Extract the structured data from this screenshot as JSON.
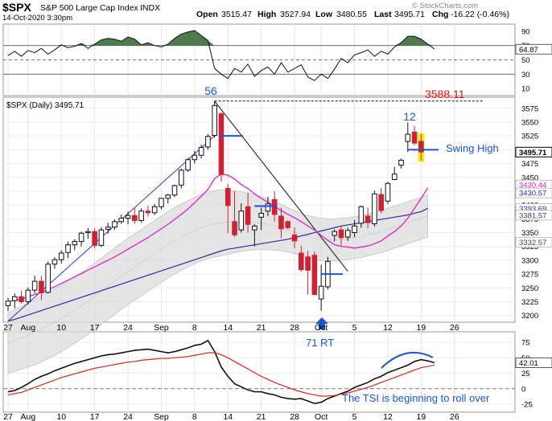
{
  "header": {
    "symbol": "$SPX",
    "name": "S&P 500 Large Cap Index",
    "exchange": "INDX",
    "date": "14-Oct-2020 3:30pm",
    "open_label": "Open",
    "open": "3515.47",
    "high_label": "High",
    "high": "3527.94",
    "low_label": "Low",
    "low": "3480.55",
    "last_label": "Last",
    "last": "3495.71",
    "chg_label": "Chg",
    "chg": "-16.22 (-0.46%)",
    "watermark": "© StockCharts.com"
  },
  "colors": {
    "up": "#111111",
    "down": "#cc2233",
    "accent_blue": "#1a55d6",
    "ma_fast": "#e020c8",
    "ma_slow": "#2a2aa0",
    "band": "#dcdcdc",
    "rsi_fill": "#4e7a4e",
    "annotation_red": "#dd1111",
    "highlight": "#f2ea10"
  },
  "chart_data": [
    {
      "type": "line",
      "panel": "upper indicator",
      "y_ticks": [
        90,
        70,
        50,
        30,
        10
      ],
      "ylim": [
        0,
        100
      ],
      "reference_levels": [
        70,
        50,
        30
      ],
      "last_value_label": "64.87",
      "last_value": 64.87,
      "series": [
        {
          "values": [
            56,
            62,
            55,
            63,
            60,
            66,
            58,
            64,
            71,
            67,
            69,
            73,
            66,
            72,
            78,
            80,
            79,
            76,
            82,
            79,
            71,
            74,
            70,
            68,
            72,
            80,
            86,
            89,
            91,
            84,
            77,
            38,
            30,
            24,
            38,
            33,
            44,
            27,
            35,
            40,
            30,
            46,
            33,
            38,
            43,
            26,
            21,
            30,
            24,
            37,
            52,
            46,
            57,
            60,
            64,
            55,
            62,
            58,
            68,
            74,
            83,
            83,
            79,
            72,
            65
          ]
        }
      ]
    },
    {
      "type": "candlestick",
      "panel": "price",
      "title": "$SPX (Daily) 3495.71",
      "y_ticks": [
        3575,
        3550,
        3525,
        3500,
        3475,
        3450,
        3425,
        3400,
        3375,
        3350,
        3325,
        3300,
        3275,
        3250,
        3225,
        3200
      ],
      "ylim": [
        3188,
        3595
      ],
      "x_ticks": [
        "27",
        "Aug",
        "10",
        "17",
        "24",
        "Sep",
        "8",
        "14",
        "21",
        "28",
        "Oct",
        "5",
        "12",
        "19",
        "26"
      ],
      "right_labels": [
        "3495.71",
        "3430.44",
        "3430.57",
        "3393.69",
        "3381.57",
        "3332.57"
      ],
      "candles": [
        {
          "o": 3218,
          "h": 3232,
          "l": 3208,
          "c": 3226,
          "up": true
        },
        {
          "o": 3227,
          "h": 3240,
          "l": 3213,
          "c": 3234,
          "up": true
        },
        {
          "o": 3234,
          "h": 3245,
          "l": 3222,
          "c": 3225,
          "up": false
        },
        {
          "o": 3225,
          "h": 3251,
          "l": 3220,
          "c": 3246,
          "up": true
        },
        {
          "o": 3246,
          "h": 3272,
          "l": 3240,
          "c": 3262,
          "up": true
        },
        {
          "o": 3262,
          "h": 3272,
          "l": 3228,
          "c": 3241,
          "up": false
        },
        {
          "o": 3242,
          "h": 3298,
          "l": 3240,
          "c": 3293,
          "up": true
        },
        {
          "o": 3293,
          "h": 3306,
          "l": 3285,
          "c": 3301,
          "up": true
        },
        {
          "o": 3301,
          "h": 3318,
          "l": 3294,
          "c": 3313,
          "up": true
        },
        {
          "o": 3314,
          "h": 3334,
          "l": 3304,
          "c": 3328,
          "up": true
        },
        {
          "o": 3328,
          "h": 3338,
          "l": 3318,
          "c": 3334,
          "up": true
        },
        {
          "o": 3334,
          "h": 3352,
          "l": 3325,
          "c": 3349,
          "up": true
        },
        {
          "o": 3350,
          "h": 3358,
          "l": 3339,
          "c": 3352,
          "up": true
        },
        {
          "o": 3352,
          "h": 3358,
          "l": 3322,
          "c": 3327,
          "up": false
        },
        {
          "o": 3327,
          "h": 3360,
          "l": 3324,
          "c": 3355,
          "up": true
        },
        {
          "o": 3356,
          "h": 3368,
          "l": 3348,
          "c": 3360,
          "up": true
        },
        {
          "o": 3360,
          "h": 3374,
          "l": 3355,
          "c": 3370,
          "up": true
        },
        {
          "o": 3370,
          "h": 3383,
          "l": 3366,
          "c": 3376,
          "up": true
        },
        {
          "o": 3376,
          "h": 3388,
          "l": 3365,
          "c": 3381,
          "up": true
        },
        {
          "o": 3381,
          "h": 3396,
          "l": 3366,
          "c": 3372,
          "up": false
        },
        {
          "o": 3372,
          "h": 3394,
          "l": 3368,
          "c": 3389,
          "up": true
        },
        {
          "o": 3389,
          "h": 3399,
          "l": 3379,
          "c": 3386,
          "up": false
        },
        {
          "o": 3386,
          "h": 3402,
          "l": 3382,
          "c": 3397,
          "up": true
        },
        {
          "o": 3397,
          "h": 3413,
          "l": 3392,
          "c": 3412,
          "up": true
        },
        {
          "o": 3412,
          "h": 3420,
          "l": 3403,
          "c": 3418,
          "up": true
        },
        {
          "o": 3418,
          "h": 3437,
          "l": 3414,
          "c": 3435,
          "up": true
        },
        {
          "o": 3436,
          "h": 3466,
          "l": 3430,
          "c": 3463,
          "up": true
        },
        {
          "o": 3463,
          "h": 3485,
          "l": 3460,
          "c": 3482,
          "up": true
        },
        {
          "o": 3482,
          "h": 3498,
          "l": 3475,
          "c": 3490,
          "up": true
        },
        {
          "o": 3490,
          "h": 3509,
          "l": 3484,
          "c": 3504,
          "up": true
        },
        {
          "o": 3505,
          "h": 3528,
          "l": 3500,
          "c": 3524,
          "up": true
        },
        {
          "o": 3526,
          "h": 3588,
          "l": 3522,
          "c": 3580,
          "up": true
        },
        {
          "o": 3565,
          "h": 3568,
          "l": 3442,
          "c": 3455,
          "up": false
        },
        {
          "o": 3430,
          "h": 3438,
          "l": 3349,
          "c": 3399,
          "up": false
        },
        {
          "o": 3370,
          "h": 3425,
          "l": 3342,
          "c": 3346,
          "up": false
        },
        {
          "o": 3355,
          "h": 3403,
          "l": 3350,
          "c": 3389,
          "up": true
        },
        {
          "o": 3365,
          "h": 3422,
          "l": 3350,
          "c": 3397,
          "up": false
        },
        {
          "o": 3362,
          "h": 3365,
          "l": 3325,
          "c": 3355,
          "up": true
        },
        {
          "o": 3378,
          "h": 3395,
          "l": 3355,
          "c": 3385,
          "up": true
        },
        {
          "o": 3389,
          "h": 3415,
          "l": 3380,
          "c": 3402,
          "up": true
        },
        {
          "o": 3410,
          "h": 3425,
          "l": 3370,
          "c": 3383,
          "up": false
        },
        {
          "o": 3380,
          "h": 3395,
          "l": 3340,
          "c": 3357,
          "up": false
        },
        {
          "o": 3370,
          "h": 3372,
          "l": 3356,
          "c": 3359,
          "up": false
        },
        {
          "o": 3346,
          "h": 3360,
          "l": 3322,
          "c": 3335,
          "up": false
        },
        {
          "o": 3313,
          "h": 3326,
          "l": 3279,
          "c": 3283,
          "up": false
        },
        {
          "o": 3306,
          "h": 3317,
          "l": 3238,
          "c": 3282,
          "up": false
        },
        {
          "o": 3309,
          "h": 3316,
          "l": 3237,
          "c": 3238,
          "up": false
        },
        {
          "o": 3230,
          "h": 3292,
          "l": 3209,
          "c": 3253,
          "up": true
        },
        {
          "o": 3252,
          "h": 3306,
          "l": 3247,
          "c": 3298,
          "up": true
        },
        {
          "o": 3345,
          "h": 3356,
          "l": 3334,
          "c": 3352,
          "up": true
        },
        {
          "o": 3355,
          "h": 3363,
          "l": 3326,
          "c": 3341,
          "up": false
        },
        {
          "o": 3342,
          "h": 3359,
          "l": 3335,
          "c": 3354,
          "up": true
        },
        {
          "o": 3350,
          "h": 3373,
          "l": 3342,
          "c": 3362,
          "up": true
        },
        {
          "o": 3367,
          "h": 3399,
          "l": 3359,
          "c": 3397,
          "up": true
        },
        {
          "o": 3380,
          "h": 3395,
          "l": 3358,
          "c": 3368,
          "up": false
        },
        {
          "o": 3366,
          "h": 3426,
          "l": 3361,
          "c": 3420,
          "up": true
        },
        {
          "o": 3419,
          "h": 3431,
          "l": 3385,
          "c": 3390,
          "up": false
        },
        {
          "o": 3407,
          "h": 3442,
          "l": 3402,
          "c": 3439,
          "up": true
        },
        {
          "o": 3446,
          "h": 3469,
          "l": 3445,
          "c": 3456,
          "up": true
        },
        {
          "o": 3472,
          "h": 3484,
          "l": 3466,
          "c": 3481,
          "up": true
        },
        {
          "o": 3515,
          "h": 3549,
          "l": 3496,
          "c": 3528,
          "up": true
        },
        {
          "o": 3532,
          "h": 3543,
          "l": 3508,
          "c": 3512,
          "up": false
        },
        {
          "o": 3515,
          "h": 3528,
          "l": 3481,
          "c": 3496,
          "up": false
        }
      ],
      "ma_fast": [
        3225,
        3228,
        3230,
        3234,
        3238,
        3242,
        3247,
        3252,
        3258,
        3264,
        3270,
        3276,
        3282,
        3288,
        3294,
        3300,
        3306,
        3313,
        3320,
        3327,
        3334,
        3341,
        3349,
        3357,
        3365,
        3374,
        3383,
        3393,
        3404,
        3416,
        3428,
        3448,
        3456,
        3454,
        3447,
        3437,
        3430,
        3420,
        3412,
        3405,
        3398,
        3390,
        3383,
        3377,
        3370,
        3362,
        3355,
        3345,
        3336,
        3328,
        3325,
        3324,
        3322,
        3324,
        3326,
        3330,
        3335,
        3344,
        3352,
        3362,
        3376,
        3394,
        3412,
        3431
      ],
      "ma_slow": [
        3190,
        3193,
        3197,
        3201,
        3205,
        3209,
        3213,
        3217,
        3221,
        3225,
        3229,
        3233,
        3237,
        3241,
        3245,
        3249,
        3253,
        3257,
        3261,
        3265,
        3269,
        3273,
        3277,
        3281,
        3285,
        3289,
        3293,
        3297,
        3301,
        3305,
        3309,
        3313,
        3317,
        3320,
        3322,
        3324,
        3326,
        3328,
        3330,
        3332,
        3334,
        3336,
        3338,
        3341,
        3344,
        3347,
        3350,
        3353,
        3356,
        3359,
        3362,
        3364,
        3366,
        3368,
        3370,
        3372,
        3374,
        3376,
        3378,
        3380,
        3382,
        3385,
        3388,
        3394
      ],
      "band_center": [
        3150,
        3155,
        3160,
        3165,
        3170,
        3176,
        3182,
        3188,
        3195,
        3202,
        3210,
        3218,
        3226,
        3235,
        3244,
        3253,
        3262,
        3271,
        3280,
        3288,
        3296,
        3304,
        3312,
        3320,
        3328,
        3335,
        3342,
        3348,
        3354,
        3359,
        3363,
        3366,
        3368,
        3369,
        3370,
        3370,
        3370,
        3369,
        3367,
        3365,
        3362,
        3359,
        3355,
        3351,
        3347,
        3343,
        3340,
        3338,
        3337,
        3337,
        3338,
        3339,
        3341,
        3343,
        3346,
        3349,
        3352,
        3356,
        3360,
        3364,
        3368,
        3372,
        3376,
        3380
      ],
      "band_halfwidth": [
        55,
        56,
        57,
        58,
        59,
        60,
        60,
        60,
        60,
        60,
        60,
        60,
        60,
        60,
        60,
        60,
        60,
        60,
        60,
        60,
        60,
        60,
        60,
        60,
        60,
        60,
        60,
        60,
        60,
        60,
        60,
        60,
        60,
        58,
        56,
        54,
        52,
        50,
        48,
        46,
        44,
        42,
        40,
        39,
        38,
        38,
        38,
        38,
        38,
        38,
        38,
        38,
        38,
        38,
        38,
        38,
        38,
        38,
        38,
        38,
        38,
        38,
        38,
        38
      ]
    },
    {
      "type": "line",
      "panel": "lower indicator",
      "y_ticks": [
        75,
        50,
        25,
        0,
        -25
      ],
      "ylim": [
        -38,
        92
      ],
      "last_value_label": "42.01",
      "last_value": 42.01,
      "series": [
        {
          "color": "black",
          "values": [
            -5,
            -3,
            2,
            8,
            15,
            20,
            24,
            29,
            33,
            37,
            41,
            44,
            47,
            50,
            53,
            55,
            56,
            58,
            60,
            62,
            63,
            64,
            62,
            60,
            58,
            60,
            63,
            66,
            70,
            72,
            78,
            60,
            35,
            20,
            8,
            3,
            -2,
            -5,
            -5,
            -8,
            -10,
            -14,
            -16,
            -17,
            -16,
            -20,
            -24,
            -22,
            -16,
            -12,
            -8,
            -4,
            2,
            6,
            10,
            16,
            20,
            26,
            30,
            34,
            38,
            44,
            47,
            45,
            42
          ]
        },
        {
          "color": "red",
          "values": [
            -10,
            -8,
            -6,
            -2,
            2,
            6,
            10,
            14,
            18,
            21,
            24,
            27,
            30,
            33,
            35,
            37,
            39,
            41,
            43,
            44,
            46,
            47,
            48,
            49,
            49,
            50,
            51,
            52,
            54,
            56,
            58,
            58,
            55,
            50,
            44,
            38,
            32,
            26,
            20,
            15,
            10,
            6,
            2,
            -2,
            -5,
            -8,
            -10,
            -12,
            -12,
            -11,
            -9,
            -7,
            -4,
            -1,
            2,
            6,
            10,
            14,
            18,
            22,
            26,
            30,
            34,
            36,
            38
          ]
        }
      ]
    }
  ],
  "annotations": {
    "peak_label": "56",
    "peak_price": "3588.11",
    "recent_label": "12",
    "swing_high": "Swing High",
    "low_label": "71 RT",
    "tsi_note": "The TSI is beginning to roll over"
  }
}
